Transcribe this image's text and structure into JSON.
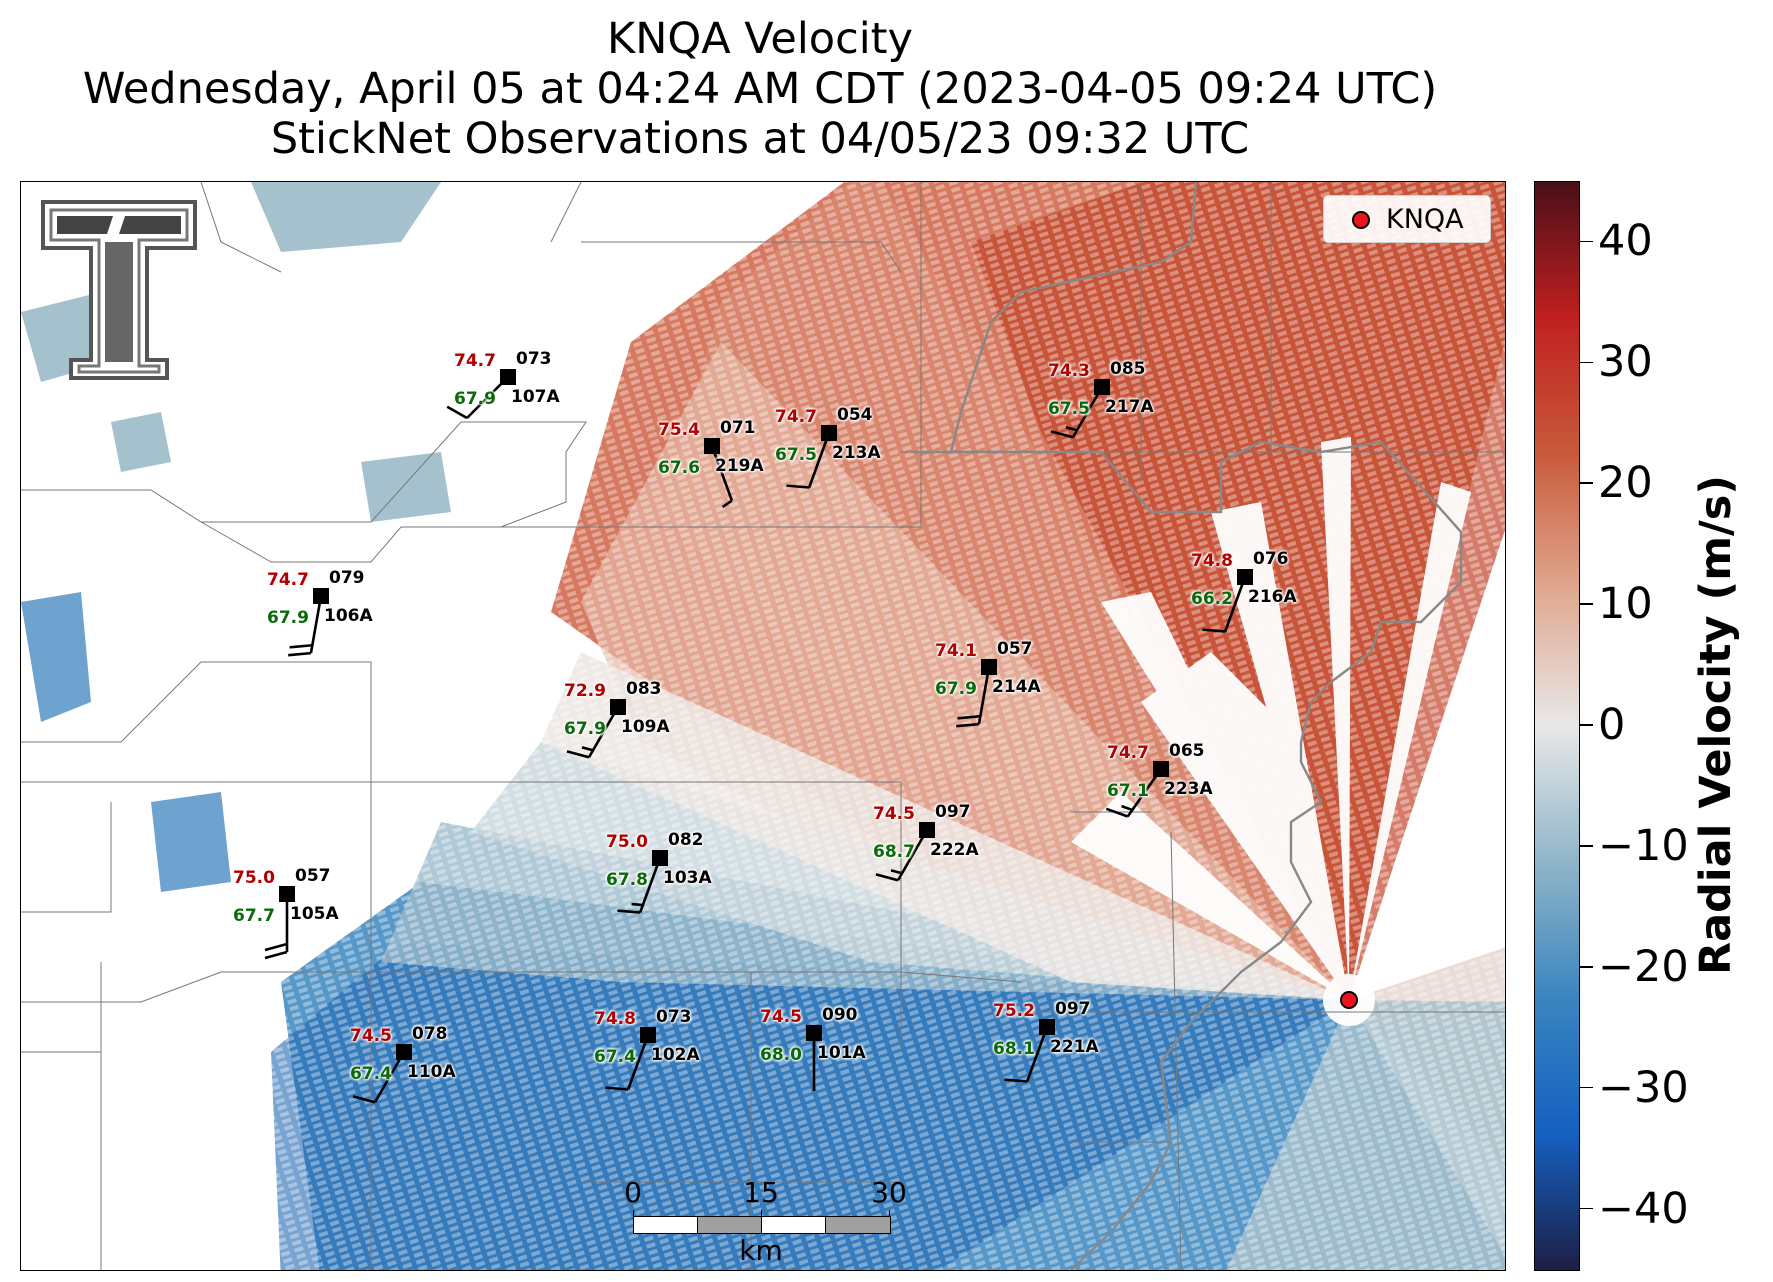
{
  "title": {
    "line1": "KNQA Velocity",
    "line2": "Wednesday, April 05 at 04:24 AM CDT (2023-04-05 09:24 UTC)",
    "line3": "StickNet Observations at 04/05/23 09:32 UTC"
  },
  "legend": {
    "label": "KNQA",
    "marker_color": "#e8161a"
  },
  "colorbar": {
    "title": "Radial Velocity (m/s)",
    "ticks": [
      "40",
      "30",
      "20",
      "10",
      "0",
      "−10",
      "−20",
      "−30",
      "−40"
    ],
    "range": [
      -45,
      45
    ],
    "colors": [
      "#1c1f45",
      "#1560c0",
      "#3a85c0",
      "#8fb5c8",
      "#e8e8e8",
      "#e0a890",
      "#c85a3a",
      "#c02020",
      "#4a0f18"
    ]
  },
  "scalebar": {
    "ticks": [
      "0",
      "15",
      "30"
    ],
    "unit": "km"
  },
  "stations": [
    {
      "id": "107A",
      "temp": "74.7",
      "dew": "67.9",
      "pres": "073",
      "barb_dir": 225,
      "barb_full": 1,
      "barb_half": 0
    },
    {
      "id": "219A",
      "temp": "75.4",
      "dew": "67.6",
      "pres": "071",
      "barb_dir": 160,
      "barb_full": 0,
      "barb_half": 1
    },
    {
      "id": "213A",
      "temp": "74.7",
      "dew": "67.5",
      "pres": "054",
      "barb_dir": 200,
      "barb_full": 1,
      "barb_half": 0
    },
    {
      "id": "217A",
      "temp": "74.3",
      "dew": "67.5",
      "pres": "085",
      "barb_dir": 210,
      "barb_full": 1,
      "barb_half": 1
    },
    {
      "id": "106A",
      "temp": "74.7",
      "dew": "67.9",
      "pres": "079",
      "barb_dir": 190,
      "barb_full": 2,
      "barb_half": 0
    },
    {
      "id": "216A",
      "temp": "74.8",
      "dew": "66.2",
      "pres": "076",
      "barb_dir": 200,
      "barb_full": 1,
      "barb_half": 0
    },
    {
      "id": "214A",
      "temp": "74.1",
      "dew": "67.9",
      "pres": "057",
      "barb_dir": 190,
      "barb_full": 2,
      "barb_half": 0
    },
    {
      "id": "109A",
      "temp": "72.9",
      "dew": "67.9",
      "pres": "083",
      "barb_dir": 210,
      "barb_full": 1,
      "barb_half": 1
    },
    {
      "id": "223A",
      "temp": "74.7",
      "dew": "67.1",
      "pres": "065",
      "barb_dir": 215,
      "barb_full": 1,
      "barb_half": 1
    },
    {
      "id": "222A",
      "temp": "74.5",
      "dew": "68.7",
      "pres": "097",
      "barb_dir": 210,
      "barb_full": 1,
      "barb_half": 1
    },
    {
      "id": "105A",
      "temp": "75.0",
      "dew": "67.7",
      "pres": "057",
      "barb_dir": 180,
      "barb_full": 2,
      "barb_half": 0
    },
    {
      "id": "103A",
      "temp": "75.0",
      "dew": "67.8",
      "pres": "082",
      "barb_dir": 200,
      "barb_full": 1,
      "barb_half": 1
    },
    {
      "id": "110A",
      "temp": "74.5",
      "dew": "67.4",
      "pres": "078",
      "barb_dir": 210,
      "barb_full": 1,
      "barb_half": 0
    },
    {
      "id": "102A",
      "temp": "74.8",
      "dew": "67.4",
      "pres": "073",
      "barb_dir": 200,
      "barb_full": 1,
      "barb_half": 0
    },
    {
      "id": "101A",
      "temp": "74.5",
      "dew": "68.0",
      "pres": "090",
      "barb_dir": 180,
      "barb_full": 0,
      "barb_half": 0
    },
    {
      "id": "221A",
      "temp": "75.2",
      "dew": "68.1",
      "pres": "097",
      "barb_dir": 200,
      "barb_full": 1,
      "barb_half": 0
    }
  ]
}
